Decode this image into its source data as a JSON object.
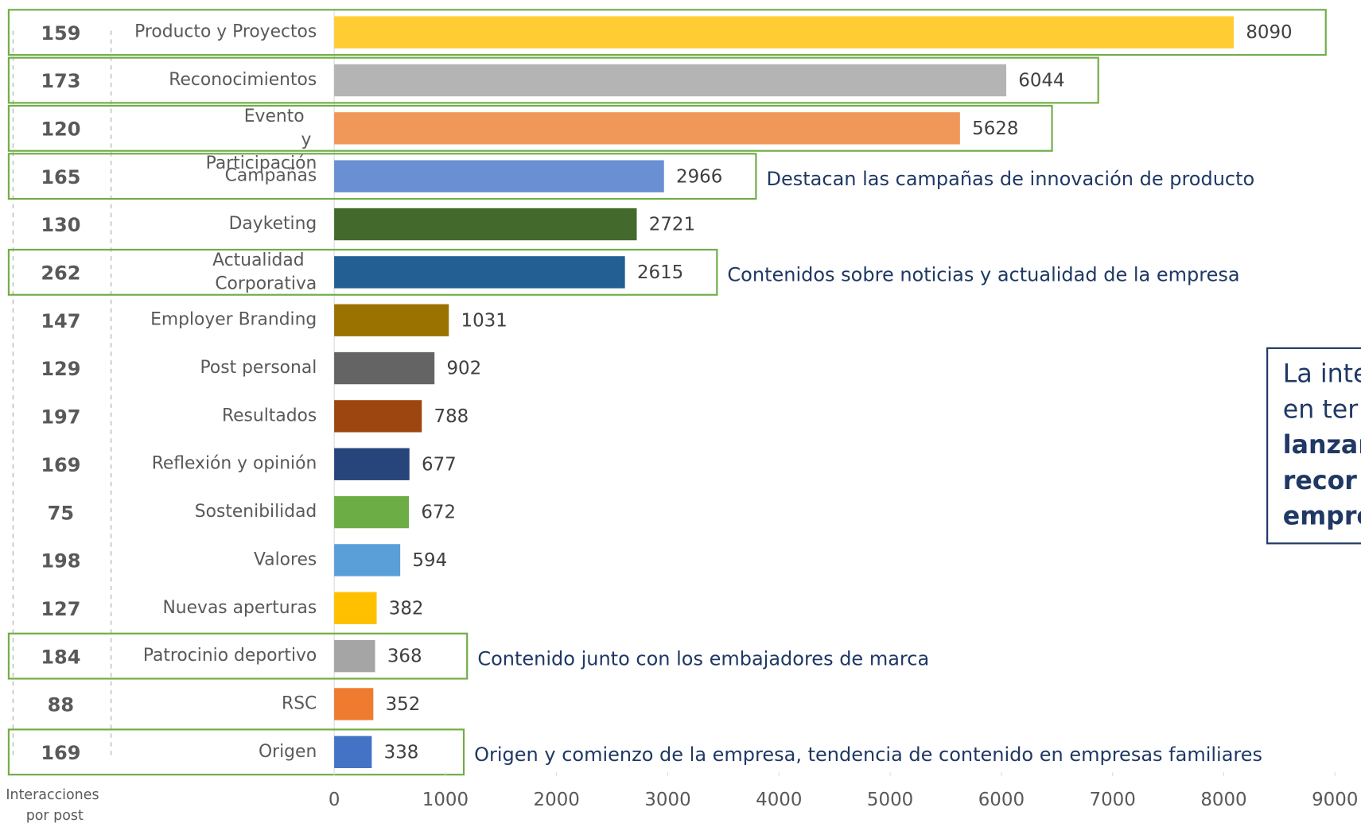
{
  "chart_data": {
    "type": "bar",
    "orientation": "horizontal",
    "categories": [
      "Producto y Proyectos",
      "Reconocimientos",
      "Evento y Participación",
      "Campañas",
      "Dayketing",
      "Actualidad Corporativa",
      "Employer Branding",
      "Post personal",
      "Resultados",
      "Reflexión y opinión",
      "Sostenibilidad",
      "Valores",
      "Nuevas aperturas",
      "Patrocinio deportivo",
      "RSC",
      "Origen"
    ],
    "values": [
      8090,
      6044,
      5628,
      2966,
      2721,
      2615,
      1031,
      902,
      788,
      677,
      672,
      594,
      382,
      368,
      352,
      338
    ],
    "colors": [
      "#ffcd33",
      "#b4b4b4",
      "#f0975a",
      "#6a8fd2",
      "#436a2c",
      "#245f93",
      "#9a7200",
      "#646464",
      "#9e460f",
      "#27457a",
      "#6dad46",
      "#5a9fd8",
      "#ffc000",
      "#a5a5a5",
      "#ee7b30",
      "#4472c4"
    ],
    "interactions": [
      159,
      173,
      120,
      165,
      130,
      262,
      147,
      129,
      197,
      169,
      75,
      198,
      127,
      184,
      88,
      169
    ],
    "interactions_label": "Interacciones por post",
    "highlighted": [
      true,
      true,
      true,
      true,
      false,
      true,
      false,
      false,
      false,
      false,
      false,
      false,
      false,
      true,
      false,
      true
    ],
    "highlight_color": "#70ad47",
    "annotations": [
      null,
      null,
      null,
      "Destacan las campañas de innovación de producto",
      null,
      "Contenidos sobre noticias y actualidad de la empresa",
      null,
      null,
      null,
      null,
      null,
      null,
      null,
      "Contenido junto con los embajadores de marca",
      null,
      "Origen y comienzo de la empresa, tendencia de contenido en empresas familiares"
    ],
    "xlim": [
      0,
      9000
    ],
    "xticks": [
      0,
      1000,
      2000,
      3000,
      4000,
      5000,
      6000,
      7000,
      8000,
      9000
    ],
    "side_note": {
      "lines": [
        "La inte",
        "en ter",
        "lanzar",
        "recor",
        "empre"
      ],
      "bold": [
        false,
        false,
        true,
        true,
        true
      ]
    }
  }
}
